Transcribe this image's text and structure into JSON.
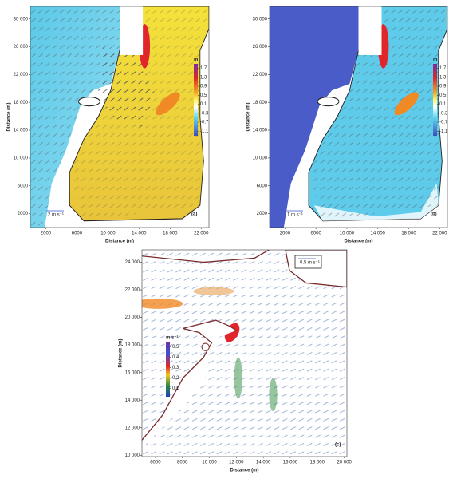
{
  "chart_data": [
    {
      "type": "vector-field",
      "xlabel": "Distance (m)",
      "ylabel": "Distance (m)",
      "xlim": [
        0,
        23000
      ],
      "ylim": [
        0,
        31800
      ],
      "xticks": [
        2000,
        6000,
        {
          "value": 10000,
          "label": "10 000"
        },
        {
          "value": 14000,
          "label": "14 000"
        },
        {
          "value": 18000,
          "label": "18 000"
        },
        {
          "value": 22000,
          "label": "22 000"
        }
      ],
      "yticks": [
        2000,
        6000,
        {
          "value": 10000,
          "label": "10 000"
        },
        {
          "value": 14000,
          "label": "14 000"
        },
        {
          "value": 18000,
          "label": "18 000"
        },
        {
          "value": 22000,
          "label": "22 000"
        },
        {
          "value": 26000,
          "label": "26 000"
        },
        {
          "value": 30000,
          "label": "30 000"
        }
      ],
      "colorbar_label": "m",
      "clim": [
        -1.3,
        1.9
      ],
      "colorbar_ticks": [
        1.7,
        1.3,
        0.9,
        0.5,
        0.1,
        -0.3,
        -0.7,
        -1.1
      ],
      "scale_label": "2 m s⁻¹",
      "panel_label": "(a)"
    },
    {
      "type": "vector-field",
      "xlabel": "Distance (m)",
      "ylabel": "Distance (m)",
      "xlim": [
        0,
        23000
      ],
      "ylim": [
        0,
        31800
      ],
      "xticks": [
        2000,
        6000,
        {
          "value": 10000,
          "label": "10 000"
        },
        {
          "value": 14000,
          "label": "14 000"
        },
        {
          "value": 18000,
          "label": "18 000"
        },
        {
          "value": 22000,
          "label": "22 000"
        }
      ],
      "yticks": [
        2000,
        6000,
        {
          "value": 10000,
          "label": "10 000"
        },
        {
          "value": 14000,
          "label": "14 000"
        },
        {
          "value": 18000,
          "label": "18 000"
        },
        {
          "value": 22000,
          "label": "22 000"
        },
        {
          "value": 26000,
          "label": "26 000"
        },
        {
          "value": 30000,
          "label": "30 000"
        }
      ],
      "colorbar_label": "m",
      "clim": [
        -1.3,
        1.9
      ],
      "colorbar_ticks": [
        1.7,
        1.3,
        0.9,
        0.5,
        0.1,
        -0.3,
        -0.7,
        -1.1
      ],
      "scale_label": "1 m s⁻¹",
      "panel_label": "(b)"
    },
    {
      "type": "vector-field",
      "xlabel": "Distance (m)",
      "ylabel": "Distance (m)",
      "xlim": [
        5000,
        20200
      ],
      "ylim": [
        9900,
        24900
      ],
      "xticks": [
        6000,
        8000,
        {
          "value": 10000,
          "label": "10 000"
        },
        {
          "value": 12000,
          "label": "12 000"
        },
        {
          "value": 14000,
          "label": "14 000"
        },
        {
          "value": 16000,
          "label": "16 000"
        },
        {
          "value": 18000,
          "label": "18 000"
        },
        {
          "value": 20000,
          "label": "20 000"
        }
      ],
      "yticks": [
        {
          "value": 10000,
          "label": "10 000"
        },
        {
          "value": 12000,
          "label": "12 000"
        },
        {
          "value": 14000,
          "label": "14 000"
        },
        {
          "value": 16000,
          "label": "16 000"
        },
        {
          "value": 18000,
          "label": "18 000"
        },
        {
          "value": 20000,
          "label": "20 000"
        },
        {
          "value": 22000,
          "label": "22 000"
        },
        {
          "value": 24000,
          "label": "24 000"
        }
      ],
      "colorbar_label": "m s⁻¹",
      "clim": [
        0.02,
        0.55
      ],
      "colorbar_ticks": [
        0.5,
        0.4,
        0.3,
        0.2,
        0.1
      ],
      "scale_label": "0.5 m s⁻¹",
      "panel_label": "(c)"
    }
  ]
}
